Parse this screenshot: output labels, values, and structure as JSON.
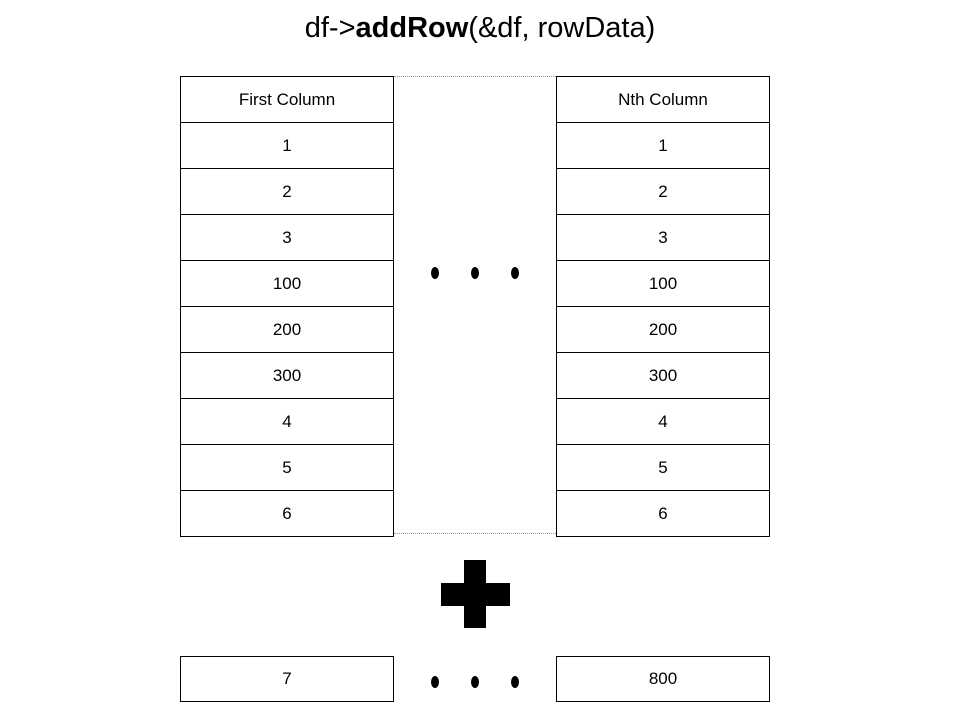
{
  "title": {
    "prefix": "df->",
    "method": "addRow",
    "args": "(&df, rowData)"
  },
  "columns": [
    {
      "header": "First Column",
      "values": [
        "1",
        "2",
        "3",
        "100",
        "200",
        "300",
        "4",
        "5",
        "6"
      ]
    },
    {
      "header": "Nth Column",
      "values": [
        "1",
        "2",
        "3",
        "100",
        "200",
        "300",
        "4",
        "5",
        "6"
      ]
    }
  ],
  "new_row": {
    "first": "7",
    "nth": "800"
  },
  "icons": {
    "ellipsis": "ellipsis-dots",
    "plus": "plus-icon"
  },
  "colors": {
    "ink": "#000000",
    "background": "#ffffff",
    "dotted_line": "#999999"
  }
}
